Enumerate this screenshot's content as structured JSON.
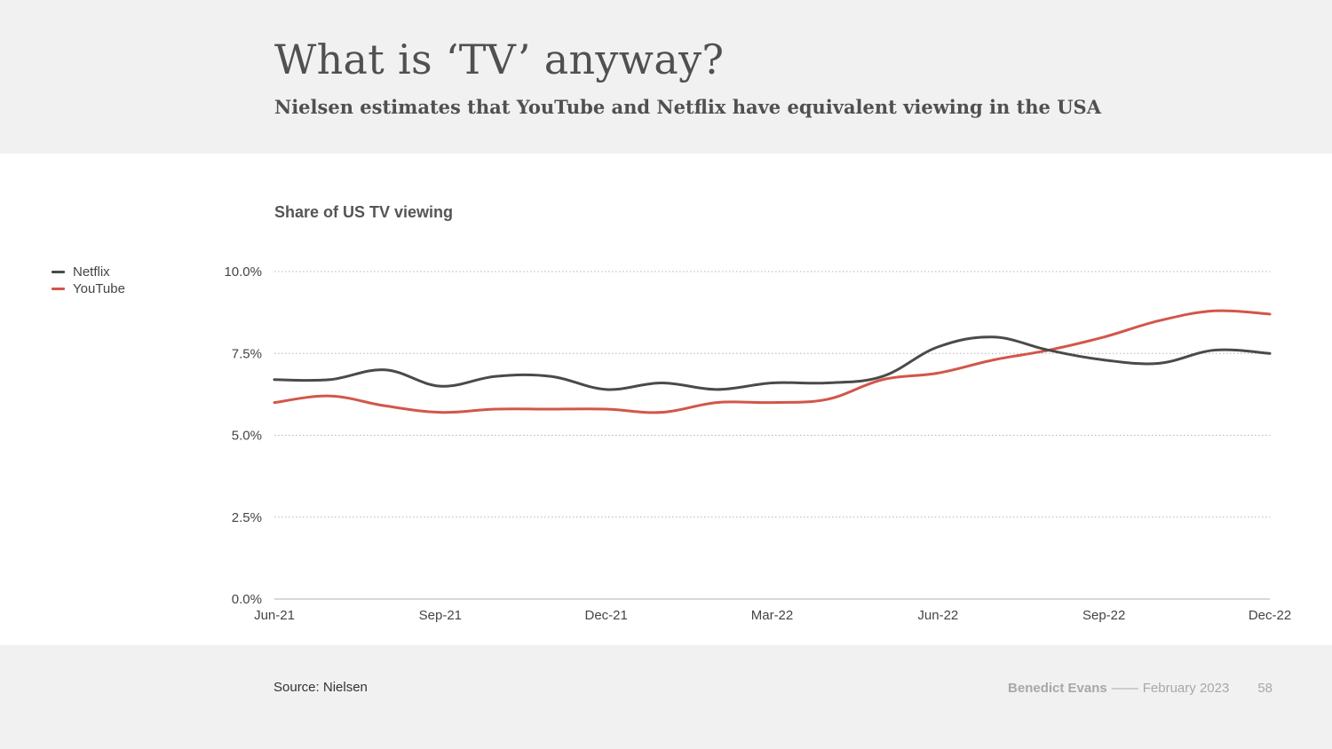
{
  "header": {
    "title": "What is ‘TV’ anyway?",
    "subtitle": "Nielsen estimates that YouTube and Netflix have equivalent viewing in the USA"
  },
  "footer": {
    "source": "Source: Nielsen",
    "author": "Benedict Evans",
    "separator": "——",
    "date": "February 2023",
    "page_number": "58"
  },
  "colors": {
    "netflix": "#4a4a4a",
    "youtube": "#d2564a",
    "gridline": "#b5b5b5",
    "axis": "#b0b0b0"
  },
  "chart_data": {
    "type": "line",
    "title": "Share of US TV viewing",
    "xlabel": "",
    "ylabel": "",
    "x": [
      "Jun-21",
      "Jul-21",
      "Aug-21",
      "Sep-21",
      "Oct-21",
      "Nov-21",
      "Dec-21",
      "Jan-22",
      "Feb-22",
      "Mar-22",
      "Apr-22",
      "May-22",
      "Jun-22",
      "Jul-22",
      "Aug-22",
      "Sep-22",
      "Oct-22",
      "Nov-22",
      "Dec-22"
    ],
    "x_tick_labels": [
      "Jun-21",
      "Sep-21",
      "Dec-21",
      "Mar-22",
      "Jun-22",
      "Sep-22",
      "Dec-22"
    ],
    "ylim": [
      0,
      10
    ],
    "y_ticks": [
      0,
      2.5,
      5,
      7.5,
      10
    ],
    "y_tick_labels": [
      "0.0%",
      "2.5%",
      "5.0%",
      "7.5%",
      "10.0%"
    ],
    "grid": "horizontal dotted",
    "legend": "left",
    "series": [
      {
        "name": "Netflix",
        "color": "#4a4a4a",
        "values": [
          6.7,
          6.7,
          7.0,
          6.5,
          6.8,
          6.8,
          6.4,
          6.6,
          6.4,
          6.6,
          6.6,
          6.8,
          7.7,
          8.0,
          7.6,
          7.3,
          7.2,
          7.6,
          7.5
        ]
      },
      {
        "name": "YouTube",
        "color": "#d2564a",
        "values": [
          6.0,
          6.2,
          5.9,
          5.7,
          5.8,
          5.8,
          5.8,
          5.7,
          6.0,
          6.0,
          6.1,
          6.7,
          6.9,
          7.3,
          7.6,
          8.0,
          8.5,
          8.8,
          8.7
        ]
      }
    ]
  }
}
